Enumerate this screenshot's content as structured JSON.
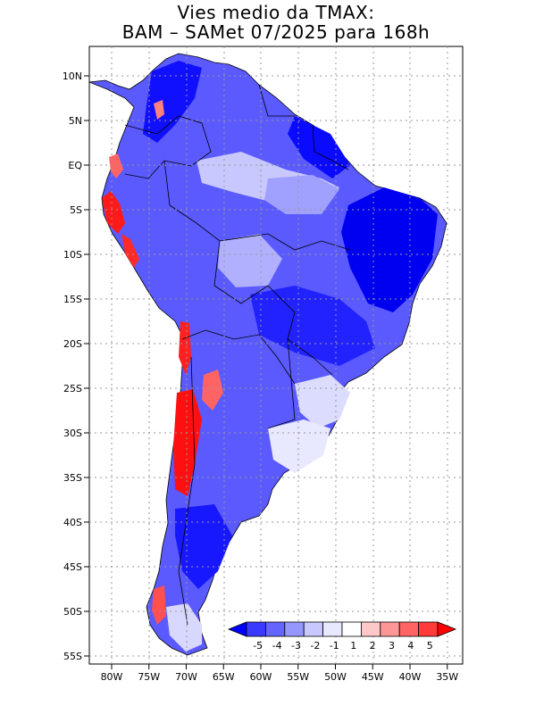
{
  "title": {
    "line1": "Vies medio da TMAX:",
    "line2": "BAM – SAMet 07/2025  para 168h"
  },
  "axes": {
    "x_ticks": [
      "80W",
      "75W",
      "70W",
      "65W",
      "60W",
      "55W",
      "50W",
      "45W",
      "40W",
      "35W"
    ],
    "y_ticks": [
      "10N",
      "5N",
      "EQ",
      "5S",
      "10S",
      "15S",
      "20S",
      "25S",
      "30S",
      "35S",
      "40S",
      "45S",
      "50S",
      "55S"
    ]
  },
  "colorbar": {
    "labels": [
      "-5",
      "-4",
      "-3",
      "-2",
      "-1",
      "1",
      "2",
      "3",
      "4",
      "5"
    ],
    "colors": [
      "#0000ff",
      "#3a3aff",
      "#6464ff",
      "#9696ff",
      "#c8c8ff",
      "#e8e8ff",
      "#ffffff",
      "#ffc8c8",
      "#ff9696",
      "#ff6464",
      "#ff3a3a",
      "#ff0000"
    ]
  },
  "map": {
    "ocean_color": "#ffffff",
    "land_base_color": "#5a5aff",
    "negative_bias_color": "#0000ff",
    "positive_bias_color": "#ff2020"
  }
}
